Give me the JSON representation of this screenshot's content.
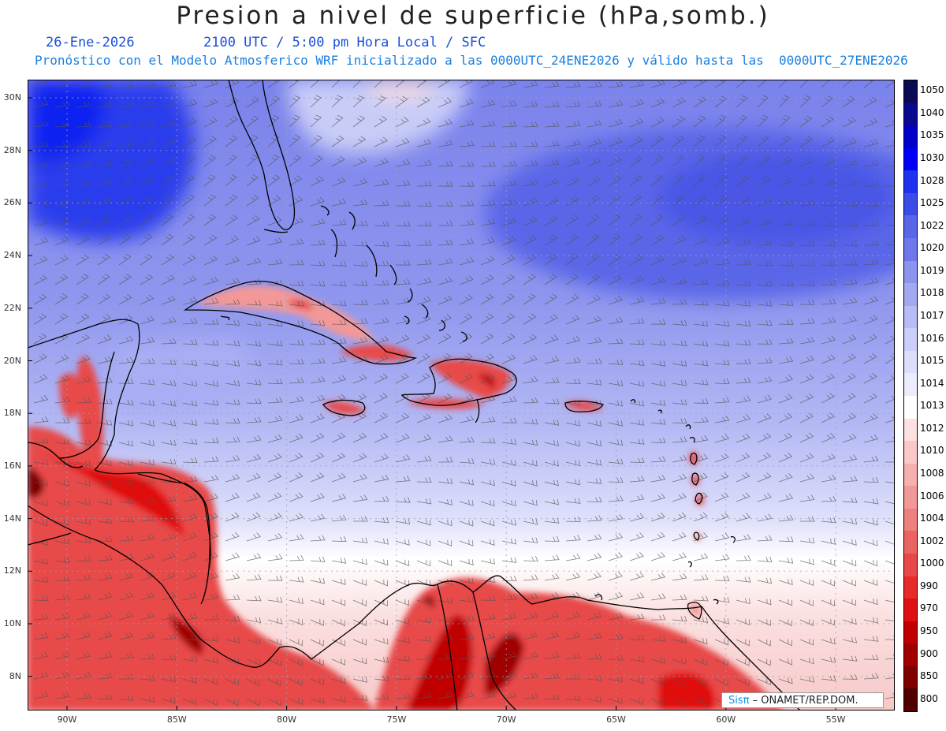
{
  "header": {
    "title": "Presion a nivel de superficie (hPa,somb.)",
    "date": "26-Ene-2026",
    "time": "2100 UTC / 5:00 pm Hora Local / SFC",
    "description": "Pronóstico con el Modelo Atmosferico WRF inicializado a las 0000UTC_24ENE2026 y válido hasta las  0000UTC_27ENE2026"
  },
  "axes": {
    "lat_labels": [
      "30N",
      "28N",
      "26N",
      "24N",
      "22N",
      "20N",
      "18N",
      "16N",
      "14N",
      "12N",
      "10N",
      "8N"
    ],
    "lon_labels": [
      "90W",
      "85W",
      "80W",
      "75W",
      "70W",
      "65W",
      "60W",
      "55W"
    ]
  },
  "colorbar": {
    "levels": [
      "1050",
      "1040",
      "1035",
      "1030",
      "1028",
      "1025",
      "1022",
      "1020",
      "1019",
      "1018",
      "1017",
      "1016",
      "1015",
      "1014",
      "1013",
      "1012",
      "1010",
      "1008",
      "1006",
      "1004",
      "1002",
      "1000",
      "990",
      "970",
      "950",
      "900",
      "850",
      "800"
    ],
    "colors": [
      "#0a0a55",
      "#0a0a90",
      "#0000c8",
      "#0000f5",
      "#1e32f0",
      "#3c4ce6",
      "#5a66e8",
      "#6e78ea",
      "#8c94ee",
      "#a2a8f2",
      "#b6bcf5",
      "#cacef8",
      "#dcdffb",
      "#ececfd",
      "#ffffff",
      "#fde0e0",
      "#fbc8c8",
      "#f7b0b0",
      "#f39898",
      "#ef8080",
      "#eb6464",
      "#e84848",
      "#e82a2a",
      "#e01010",
      "#c00000",
      "#a00000",
      "#800000",
      "#500000"
    ]
  },
  "credit": {
    "brand": "Sisπ",
    "text": " – ONAMET/REP.DOM."
  }
}
